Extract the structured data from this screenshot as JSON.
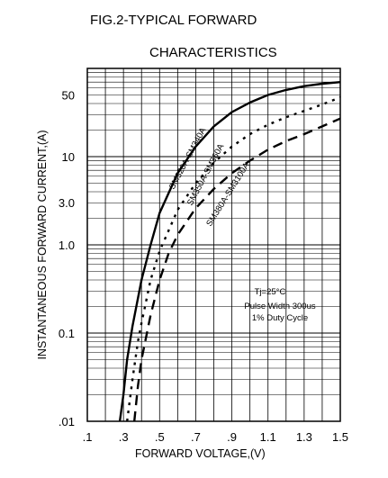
{
  "chart_data": {
    "type": "line",
    "title": "FIG.2-TYPICAL FORWARD",
    "subtitle": "CHARACTERISTICS",
    "xlabel": "FORWARD VOLTAGE,(V)",
    "ylabel": "INSTANTANEOUS FORWARD CURRENT,(A)",
    "xlim": [
      0.1,
      1.5
    ],
    "ylim": [
      0.01,
      100
    ],
    "yscale": "log",
    "grid": true,
    "x_ticks": [
      ".1",
      ".3",
      ".5",
      ".7",
      ".9",
      "1.1",
      "1.3",
      "1.5"
    ],
    "y_ticks": [
      {
        "value": 50,
        "label": "50"
      },
      {
        "value": 10,
        "label": "10"
      },
      {
        "value": 3,
        "label": "3.0"
      },
      {
        "value": 1,
        "label": "1.0"
      },
      {
        "value": 0.1,
        "label": "0.1"
      },
      {
        "value": 0.01,
        "label": ".01"
      }
    ],
    "annotation": [
      "Tj=25°C",
      "Pulse Width 300us",
      "1% Duty Cycle"
    ],
    "series": [
      {
        "name": "SM320A-SM340A",
        "style": "solid",
        "x": [
          0.28,
          0.3,
          0.32,
          0.35,
          0.4,
          0.45,
          0.5,
          0.6,
          0.7,
          0.8,
          0.9,
          1.0,
          1.1,
          1.2,
          1.3,
          1.4,
          1.5
        ],
        "y": [
          0.01,
          0.02,
          0.05,
          0.12,
          0.4,
          1.0,
          2.3,
          6.5,
          13,
          22,
          32,
          41,
          50,
          57,
          63,
          67,
          70
        ]
      },
      {
        "name": "SM350A-SM360A",
        "style": "dotted",
        "x": [
          0.32,
          0.35,
          0.38,
          0.4,
          0.45,
          0.5,
          0.6,
          0.7,
          0.8,
          0.9,
          1.0,
          1.1,
          1.2,
          1.3,
          1.4,
          1.5
        ],
        "y": [
          0.01,
          0.03,
          0.08,
          0.13,
          0.4,
          0.85,
          2.5,
          5,
          8.5,
          13,
          18,
          23,
          28,
          33,
          39,
          47
        ]
      },
      {
        "name": "SM380A-SM3100A",
        "style": "dashed",
        "x": [
          0.36,
          0.38,
          0.4,
          0.45,
          0.5,
          0.55,
          0.6,
          0.7,
          0.8,
          0.9,
          1.0,
          1.1,
          1.2,
          1.3,
          1.4,
          1.5
        ],
        "y": [
          0.01,
          0.025,
          0.05,
          0.16,
          0.4,
          0.8,
          1.3,
          2.6,
          4.3,
          6.5,
          9,
          12,
          15,
          18,
          22,
          27
        ]
      }
    ]
  }
}
